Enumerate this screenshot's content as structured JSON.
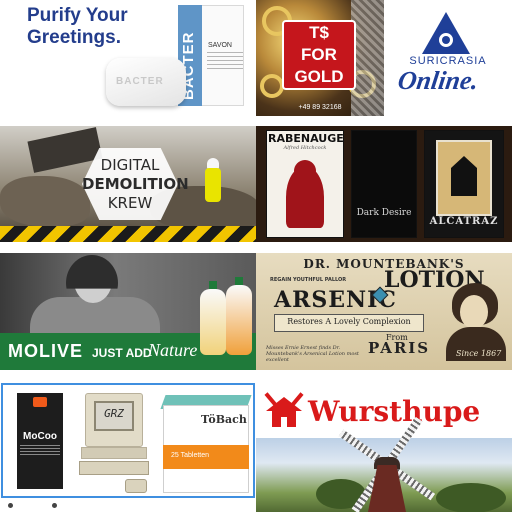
{
  "ads": {
    "bacter": {
      "headline_line1": "Purify Your",
      "headline_line2": "Greetings.",
      "soap_word": "BACTER",
      "box_brand": "BACTER",
      "box_type": "SAVON"
    },
    "gold": {
      "line1": "T$",
      "line2": "FOR",
      "line3": "GOLD",
      "phone": "+49 89 32168"
    },
    "suricrasia": {
      "name": "SURICRASIA",
      "tagline": "Online."
    },
    "demolition": {
      "line1": "DIGITAL",
      "line2": "DEMOLITION",
      "line3": "KREW"
    },
    "posters": {
      "p1_title": "RABENAUGE",
      "p1_subtitle": "Alfred Hitchcock",
      "p2_title": "Dark Desire",
      "p3_title": "ALCATRAZ"
    },
    "molive": {
      "brand": "MOLIVE",
      "slogan_plain": "JUST ADD",
      "slogan_script": "Nature"
    },
    "lotion": {
      "top": "DR. MOUNTEBANK'S",
      "claims": "REGAIN YOUTHFUL PALLOR",
      "word1": "ARSENIC",
      "word2": "LOTION",
      "banner": "Restores A Lovely Complexion",
      "from": "From",
      "city": "PARIS",
      "fine": "Misses Ernie Ernest finds Dr. Mountebank's Arsenical Lotion most excellent",
      "since": "Since 1867"
    },
    "products": {
      "pack_brand": "MoCoo",
      "screen_text": "GRZ",
      "box_brand": "TöBach",
      "box_label": "25 Tabletten"
    },
    "wursthupe": {
      "title": "Wursthupe"
    }
  },
  "colors": {
    "navy": "#233d8c",
    "gold_red": "#c5161c",
    "molive_green": "#1f7a3a",
    "wurst_red": "#d91a1a",
    "selection_blue": "#3f8fe0"
  }
}
